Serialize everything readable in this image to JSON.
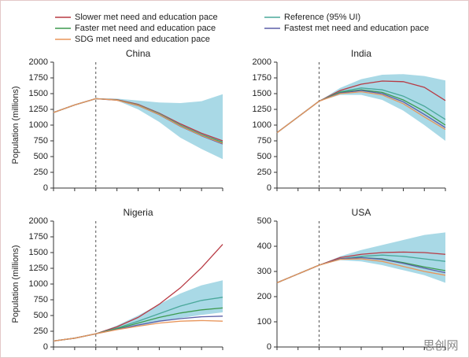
{
  "chart_data": [
    {
      "type": "line",
      "title": "China",
      "ylabel": "Population (millions)",
      "categories": [
        null,
        null,
        null,
        null,
        null,
        null,
        null,
        null,
        null
      ],
      "ylim": [
        0,
        2000
      ],
      "yticks": [
        {
          "value": 0,
          "label": "0"
        },
        250,
        500,
        750,
        1000,
        1250,
        1500,
        1750,
        2000
      ],
      "series": [
        {
          "name": "Slower met need and education pace",
          "color": "#b83a44",
          "values": [
            1200,
            1320,
            1420,
            1405,
            1330,
            1190,
            1020,
            870,
            750
          ]
        },
        {
          "name": "Reference (95% UI)",
          "color": "#4aa89a",
          "values": [
            1200,
            1320,
            1420,
            1400,
            1320,
            1180,
            1000,
            850,
            730
          ],
          "lower": [
            1200,
            1320,
            1420,
            1390,
            1250,
            1050,
            800,
            620,
            460
          ],
          "upper": [
            1200,
            1320,
            1420,
            1420,
            1390,
            1360,
            1350,
            1380,
            1490
          ]
        },
        {
          "name": "Faster met need and education pace",
          "color": "#3d9a4e",
          "values": [
            1200,
            1320,
            1420,
            1398,
            1315,
            1170,
            990,
            840,
            720
          ]
        },
        {
          "name": "Fastest met need and education pace",
          "color": "#5b5fa8",
          "values": [
            1200,
            1320,
            1420,
            1395,
            1310,
            1165,
            980,
            830,
            700
          ]
        },
        {
          "name": "SDG met need and education pace",
          "color": "#e8955a",
          "values": [
            1200,
            1320,
            1420,
            1396,
            1312,
            1168,
            985,
            835,
            710
          ]
        }
      ]
    },
    {
      "type": "line",
      "title": "India",
      "categories": [
        null,
        null,
        null,
        null,
        null,
        null,
        null,
        null,
        null
      ],
      "ylim": [
        0,
        2000
      ],
      "yticks": [
        {
          "value": 0,
          "label": "0"
        },
        250,
        500,
        750,
        1000,
        1250,
        1500,
        1750,
        2000
      ],
      "series": [
        {
          "values": [
            880,
            1130,
            1380,
            1550,
            1650,
            1700,
            1690,
            1600,
            1390
          ]
        },
        {
          "values": [
            880,
            1130,
            1380,
            1530,
            1590,
            1560,
            1460,
            1300,
            1090
          ],
          "lower": [
            880,
            1130,
            1380,
            1480,
            1480,
            1400,
            1230,
            1000,
            750
          ],
          "upper": [
            880,
            1130,
            1380,
            1590,
            1730,
            1800,
            1810,
            1780,
            1710
          ]
        },
        {
          "values": [
            880,
            1130,
            1380,
            1520,
            1560,
            1520,
            1400,
            1220,
            1000
          ]
        },
        {
          "values": [
            880,
            1130,
            1380,
            1510,
            1550,
            1500,
            1370,
            1170,
            960
          ]
        },
        {
          "values": [
            880,
            1130,
            1380,
            1500,
            1530,
            1480,
            1340,
            1130,
            930
          ]
        }
      ]
    },
    {
      "type": "line",
      "title": "Nigeria",
      "ylabel": "Population (millions)",
      "categories": [
        null,
        null,
        null,
        null,
        null,
        null,
        null,
        null,
        null
      ],
      "ylim": [
        0,
        2000
      ],
      "yticks": [
        {
          "value": 0,
          "label": "0"
        },
        250,
        500,
        750,
        1000,
        1250,
        1500,
        1750,
        2000
      ],
      "series": [
        {
          "values": [
            95,
            140,
            210,
            320,
            470,
            680,
            940,
            1260,
            1630
          ]
        },
        {
          "values": [
            95,
            140,
            210,
            300,
            410,
            530,
            650,
            740,
            790
          ],
          "lower": [
            95,
            140,
            210,
            270,
            330,
            400,
            460,
            510,
            550
          ],
          "upper": [
            95,
            140,
            210,
            340,
            500,
            680,
            850,
            980,
            1060
          ]
        },
        {
          "values": [
            95,
            140,
            210,
            290,
            380,
            470,
            540,
            590,
            620
          ]
        },
        {
          "values": [
            95,
            140,
            210,
            280,
            350,
            410,
            450,
            480,
            490
          ]
        },
        {
          "values": [
            95,
            140,
            210,
            275,
            330,
            380,
            410,
            420,
            410
          ]
        }
      ]
    },
    {
      "type": "line",
      "title": "USA",
      "categories": [
        null,
        null,
        null,
        null,
        null,
        null,
        null,
        null,
        null
      ],
      "ylim": [
        0,
        500
      ],
      "yticks": [
        {
          "value": 0,
          "label": "0"
        },
        100,
        200,
        300,
        400,
        500
      ],
      "series": [
        {
          "values": [
            255,
            290,
            325,
            355,
            368,
            375,
            377,
            375,
            368
          ]
        },
        {
          "values": [
            255,
            290,
            325,
            350,
            360,
            365,
            360,
            350,
            340
          ],
          "lower": [
            255,
            290,
            325,
            345,
            340,
            325,
            305,
            285,
            255
          ],
          "upper": [
            255,
            290,
            325,
            360,
            385,
            405,
            425,
            445,
            455
          ]
        },
        {
          "values": [
            255,
            290,
            325,
            350,
            355,
            350,
            335,
            318,
            303
          ]
        },
        {
          "values": [
            255,
            290,
            325,
            350,
            355,
            348,
            332,
            313,
            295
          ]
        },
        {
          "values": [
            255,
            290,
            325,
            348,
            350,
            340,
            320,
            300,
            285
          ]
        }
      ]
    }
  ],
  "watermark": "思创网"
}
